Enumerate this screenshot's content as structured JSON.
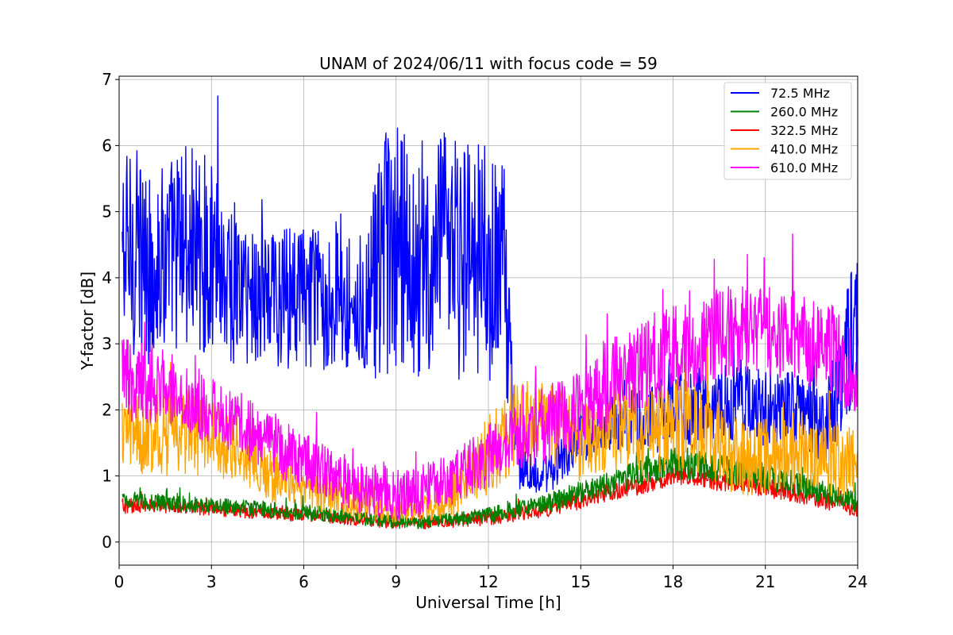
{
  "chart_data": {
    "type": "line",
    "title": "UNAM of 2024/06/11 with focus code = 59",
    "xlabel": "Universal Time [h]",
    "ylabel": "Y-factor [dB]",
    "xlim": [
      0,
      24
    ],
    "ylim": [
      -0.35,
      7.05
    ],
    "xticks": [
      0,
      3,
      6,
      9,
      12,
      15,
      18,
      21,
      24
    ],
    "yticks": [
      0,
      1,
      2,
      3,
      4,
      5,
      6,
      7
    ],
    "grid": true,
    "legend_position": "top-right",
    "series": [
      {
        "name": " 72.5 MHz",
        "color": "#0000ff",
        "x": [
          0.1,
          0.5,
          0.9,
          1.2,
          2.0,
          3.0,
          4.0,
          5.0,
          6.0,
          7.0,
          8.0,
          8.6,
          9.0,
          9.6,
          10.0,
          10.4,
          11.0,
          12.0,
          12.5,
          13.0,
          14.0,
          15.0,
          16.0,
          17.0,
          18.0,
          19.0,
          20.0,
          21.0,
          22.0,
          23.0,
          23.8,
          24.0
        ],
        "mean": [
          4.3,
          4.4,
          4.1,
          4.2,
          4.5,
          4.3,
          3.8,
          3.7,
          3.7,
          3.7,
          3.6,
          4.2,
          4.3,
          4.2,
          4.0,
          4.3,
          4.3,
          4.2,
          4.1,
          1.1,
          1.0,
          1.6,
          1.9,
          1.8,
          2.0,
          2.1,
          2.1,
          2.0,
          2.0,
          1.8,
          3.2,
          3.0
        ],
        "spread": [
          1.6,
          1.6,
          1.5,
          1.4,
          1.6,
          1.5,
          1.2,
          1.1,
          1.1,
          1.1,
          1.1,
          2.0,
          2.0,
          1.8,
          1.6,
          1.9,
          1.9,
          1.9,
          1.6,
          0.3,
          0.3,
          0.4,
          0.5,
          0.5,
          0.6,
          0.6,
          0.6,
          0.6,
          0.6,
          0.6,
          1.2,
          1.2
        ]
      },
      {
        "name": "260.0 MHz",
        "color": "#008000",
        "x": [
          0.1,
          1.0,
          3.0,
          6.0,
          9.0,
          10.0,
          12.0,
          14.0,
          16.0,
          18.0,
          20.0,
          22.0,
          24.0
        ],
        "mean": [
          0.65,
          0.6,
          0.55,
          0.45,
          0.3,
          0.3,
          0.4,
          0.6,
          0.9,
          1.2,
          1.1,
          0.9,
          0.6
        ],
        "spread": [
          0.15,
          0.12,
          0.12,
          0.12,
          0.1,
          0.1,
          0.12,
          0.15,
          0.2,
          0.25,
          0.25,
          0.2,
          0.15
        ]
      },
      {
        "name": "322.5 MHz",
        "color": "#ff0000",
        "x": [
          0.1,
          1.0,
          3.0,
          6.0,
          9.0,
          10.0,
          12.0,
          14.0,
          16.0,
          18.0,
          20.0,
          22.0,
          24.0
        ],
        "mean": [
          0.55,
          0.55,
          0.5,
          0.4,
          0.3,
          0.3,
          0.35,
          0.5,
          0.75,
          1.0,
          0.9,
          0.75,
          0.5
        ],
        "spread": [
          0.12,
          0.1,
          0.1,
          0.1,
          0.1,
          0.1,
          0.1,
          0.12,
          0.15,
          0.15,
          0.15,
          0.15,
          0.12
        ]
      },
      {
        "name": "410.0 MHz",
        "color": "#ffa500",
        "x": [
          0.1,
          1.0,
          2.0,
          3.0,
          4.0,
          5.0,
          6.0,
          7.0,
          8.0,
          9.0,
          10.0,
          11.0,
          12.0,
          13.0,
          14.0,
          15.0,
          16.0,
          17.0,
          18.0,
          19.0,
          20.0,
          21.0,
          22.0,
          23.0,
          24.0
        ],
        "mean": [
          1.7,
          1.6,
          1.7,
          1.6,
          1.4,
          1.0,
          0.8,
          0.7,
          0.6,
          0.5,
          0.5,
          0.8,
          1.3,
          1.8,
          1.8,
          1.5,
          1.7,
          1.7,
          1.8,
          1.7,
          1.3,
          1.3,
          1.4,
          1.3,
          1.2
        ],
        "spread": [
          0.6,
          0.6,
          0.7,
          0.6,
          0.5,
          0.4,
          0.3,
          0.3,
          0.3,
          0.2,
          0.2,
          0.4,
          0.6,
          0.7,
          0.7,
          0.6,
          0.6,
          0.7,
          0.7,
          0.7,
          0.6,
          0.6,
          0.6,
          0.6,
          0.5
        ]
      },
      {
        "name": "610.0 MHz",
        "color": "#ff00ff",
        "x": [
          0.1,
          1.0,
          2.0,
          3.0,
          4.0,
          5.0,
          6.0,
          7.0,
          8.0,
          9.0,
          10.0,
          11.0,
          12.0,
          13.0,
          14.0,
          15.0,
          16.0,
          17.0,
          18.0,
          19.0,
          20.0,
          21.0,
          22.0,
          23.0,
          24.0
        ],
        "mean": [
          2.5,
          2.4,
          2.2,
          2.0,
          1.8,
          1.5,
          1.2,
          1.0,
          0.8,
          0.7,
          0.8,
          1.0,
          1.3,
          1.6,
          1.8,
          2.0,
          2.4,
          2.7,
          2.9,
          3.1,
          3.2,
          3.2,
          3.1,
          3.0,
          2.4
        ],
        "spread": [
          0.7,
          0.6,
          0.6,
          0.5,
          0.5,
          0.5,
          0.4,
          0.4,
          0.4,
          0.4,
          0.4,
          0.4,
          0.5,
          0.5,
          0.6,
          0.6,
          0.7,
          0.7,
          0.7,
          0.7,
          0.7,
          0.7,
          0.7,
          0.7,
          0.7
        ]
      }
    ]
  }
}
